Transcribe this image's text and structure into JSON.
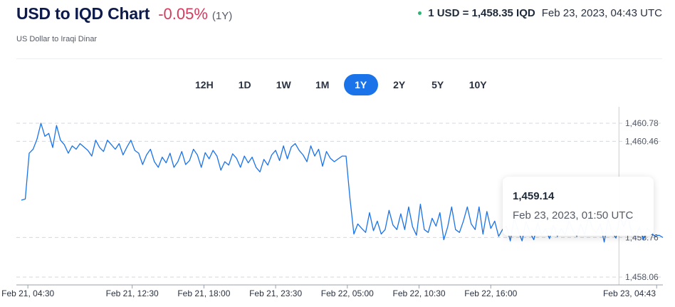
{
  "header": {
    "title": "USD to IQD Chart",
    "change": "-0.05%",
    "period": "(1Y)",
    "subtitle": "US Dollar to Iraqi Dinar"
  },
  "rate": {
    "value": "1 USD = 1,458.35 IQD",
    "time": "Feb 23, 2023, 04:43 UTC",
    "status_color": "#2bb673"
  },
  "tabs": [
    {
      "label": "12H",
      "active": false
    },
    {
      "label": "1D",
      "active": false
    },
    {
      "label": "1W",
      "active": false
    },
    {
      "label": "1M",
      "active": false
    },
    {
      "label": "1Y",
      "active": true
    },
    {
      "label": "2Y",
      "active": false
    },
    {
      "label": "5Y",
      "active": false
    },
    {
      "label": "10Y",
      "active": false
    }
  ],
  "tooltip": {
    "value": "1,459.14",
    "time": "Feb 23, 2023, 01:50 UTC"
  },
  "chart_data": {
    "type": "line",
    "line_color": "#1a73e8",
    "ylim": [
      1458.06,
      1460.78
    ],
    "y_ticks": [
      "1,460.78",
      "1,460.46",
      "1,458.76",
      "1,458.06"
    ],
    "y_tick_values": [
      1460.78,
      1460.46,
      1458.76,
      1458.06
    ],
    "x_ticks": [
      "Feb 21, 04:30",
      "Feb 21, 12:30",
      "Feb 21, 18:00",
      "Feb 21, 23:30",
      "Feb 22, 05:00",
      "Feb 22, 10:30",
      "Feb 22, 16:00",
      "Feb 23, 04:43"
    ],
    "x_tick_hours": [
      4.5,
      12.5,
      18,
      23.5,
      29,
      34.5,
      40,
      52.72
    ],
    "x_unit": "hours since Feb 21, 00:00",
    "x_range": [
      4.0,
      53.2
    ],
    "crosshair_x": 49.83,
    "grid": true,
    "series": [
      {
        "x": [
          4.0,
          4.3,
          4.6,
          4.9,
          5.2,
          5.5,
          5.8,
          6.1,
          6.4,
          6.7,
          7.0,
          7.3,
          7.6,
          7.9,
          8.2,
          8.5,
          8.8,
          9.1,
          9.4,
          9.7,
          10.0,
          10.3,
          10.6,
          10.9,
          11.2,
          11.5,
          11.8,
          12.1,
          12.4,
          12.7,
          13.0,
          13.3,
          13.6,
          13.9,
          14.2,
          14.5,
          14.8,
          15.1,
          15.4,
          15.7,
          16.0,
          16.3,
          16.6,
          16.9,
          17.2,
          17.5,
          17.8,
          18.1,
          18.4,
          18.7,
          19.0,
          19.3,
          19.6,
          19.9,
          20.2,
          20.5,
          20.8,
          21.1,
          21.4,
          21.7,
          22.0,
          22.3,
          22.6,
          22.9,
          23.2,
          23.5,
          23.8,
          24.1,
          24.4,
          24.7,
          25.0,
          25.3,
          25.6,
          25.9,
          26.2,
          26.5,
          26.8,
          27.1,
          27.4,
          27.7,
          28.0,
          28.3,
          28.6,
          28.9,
          29.2,
          29.5,
          29.8,
          30.1,
          30.4,
          30.7,
          31.0,
          31.3,
          31.6,
          31.9,
          32.2,
          32.5,
          32.8,
          33.1,
          33.4,
          33.7,
          34.0,
          34.3,
          34.6,
          34.9,
          35.2,
          35.5,
          35.8,
          36.1,
          36.4,
          36.7,
          37.0,
          37.3,
          37.6,
          37.9,
          38.2,
          38.5,
          38.8,
          39.1,
          39.4,
          39.7,
          40.0,
          40.3,
          40.6,
          40.9,
          41.2,
          41.5,
          41.8,
          42.1,
          42.4,
          42.7,
          43.0,
          43.3,
          43.6,
          43.9,
          44.2,
          44.5,
          44.8,
          45.1,
          45.4,
          45.7,
          46.0,
          46.3,
          46.6,
          46.9,
          47.2,
          47.5,
          47.8,
          48.1,
          48.4,
          48.7,
          49.0,
          49.3,
          49.6,
          49.9,
          50.2,
          50.5,
          50.8,
          51.1,
          51.4,
          51.7,
          52.0,
          52.3,
          52.6,
          52.9,
          53.2
        ],
        "y": [
          1459.42,
          1459.44,
          1460.25,
          1460.32,
          1460.5,
          1460.78,
          1460.55,
          1460.6,
          1460.35,
          1460.74,
          1460.48,
          1460.4,
          1460.25,
          1460.38,
          1460.32,
          1460.42,
          1460.36,
          1460.3,
          1460.2,
          1460.48,
          1460.35,
          1460.28,
          1460.48,
          1460.4,
          1460.32,
          1460.42,
          1460.22,
          1460.36,
          1460.48,
          1460.3,
          1460.25,
          1460.05,
          1460.22,
          1460.32,
          1460.1,
          1460.0,
          1460.18,
          1460.08,
          1460.25,
          1460.0,
          1460.1,
          1460.28,
          1460.05,
          1460.12,
          1460.32,
          1460.22,
          1460.0,
          1460.26,
          1460.15,
          1460.3,
          1460.2,
          1459.95,
          1460.1,
          1460.04,
          1460.24,
          1460.16,
          1460.0,
          1460.2,
          1460.08,
          1460.18,
          1460.0,
          1459.92,
          1460.14,
          1460.04,
          1460.22,
          1460.3,
          1460.12,
          1460.38,
          1460.15,
          1460.36,
          1460.42,
          1460.3,
          1460.22,
          1460.1,
          1460.38,
          1460.2,
          1460.32,
          1460.02,
          1460.28,
          1460.16,
          1460.1,
          1460.15,
          1460.2,
          1460.2,
          1459.45,
          1458.82,
          1459.0,
          1458.92,
          1458.85,
          1459.2,
          1458.88,
          1459.05,
          1458.82,
          1458.9,
          1459.24,
          1458.98,
          1458.9,
          1459.18,
          1458.9,
          1459.3,
          1458.95,
          1458.8,
          1459.35,
          1458.9,
          1458.85,
          1459.1,
          1458.96,
          1459.2,
          1458.72,
          1458.95,
          1459.3,
          1458.9,
          1458.85,
          1459.05,
          1459.3,
          1459.0,
          1458.9,
          1459.3,
          1458.82,
          1459.22,
          1458.92,
          1459.05,
          1458.78,
          1458.9,
          1458.96,
          1458.7,
          1459.1,
          1458.88,
          1458.7,
          1459.04,
          1458.85,
          1458.72,
          1459.02,
          1458.8,
          1458.92,
          1458.74,
          1458.98,
          1458.78,
          1458.92,
          1458.8,
          1459.05,
          1458.88,
          1458.78,
          1459.0,
          1458.8,
          1459.14,
          1458.92,
          1458.84,
          1459.0,
          1458.68,
          1459.08,
          1458.85,
          1458.75,
          1459.14,
          1458.95,
          1459.14,
          1458.84,
          1458.78,
          1458.94,
          1458.72,
          1458.92,
          1458.84,
          1458.78,
          1458.8,
          1458.76
        ]
      }
    ]
  }
}
